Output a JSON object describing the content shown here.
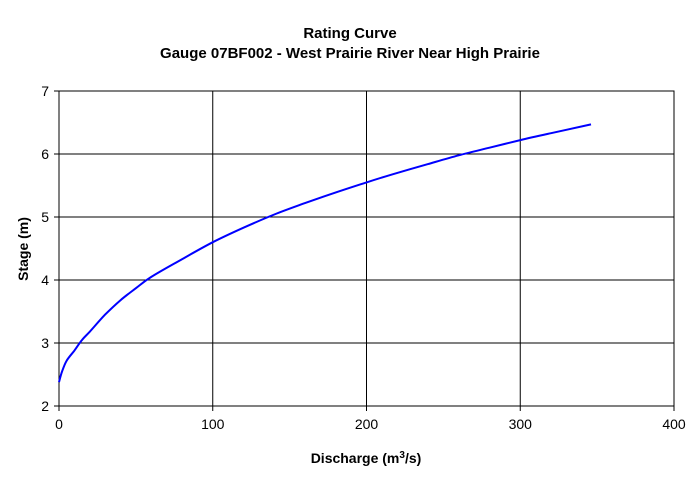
{
  "chart_data": {
    "type": "line",
    "title": "Rating Curve",
    "subtitle": "Gauge 07BF002 - West Prairie River Near High Prairie",
    "xlabel_main": "Discharge (m",
    "xlabel_sup": "3",
    "xlabel_tail": "/s)",
    "ylabel": "Stage (m)",
    "xlim": [
      0,
      400
    ],
    "ylim": [
      2,
      7
    ],
    "xticks": [
      0,
      100,
      200,
      300,
      400
    ],
    "yticks": [
      2,
      3,
      4,
      5,
      6,
      7
    ],
    "grid": true,
    "series": [
      {
        "color": "#0000ff",
        "x": [
          0,
          2,
          5,
          10,
          15,
          20,
          30,
          40,
          50,
          60,
          80,
          100,
          120,
          140,
          160,
          180,
          200,
          220,
          240,
          260,
          280,
          300,
          320,
          346
        ],
        "y": [
          2.38,
          2.55,
          2.72,
          2.88,
          3.05,
          3.18,
          3.45,
          3.68,
          3.87,
          4.05,
          4.33,
          4.6,
          4.83,
          5.04,
          5.22,
          5.39,
          5.55,
          5.7,
          5.84,
          5.98,
          6.1,
          6.22,
          6.33,
          6.47
        ]
      }
    ]
  }
}
